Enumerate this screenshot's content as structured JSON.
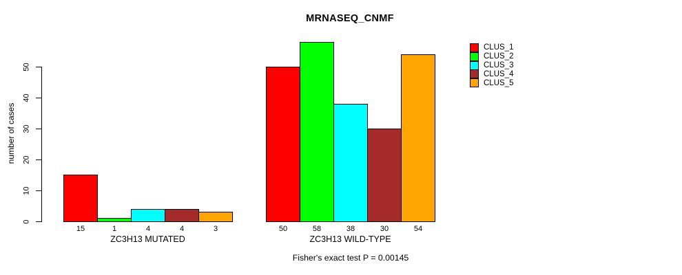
{
  "chart_data": {
    "type": "bar",
    "title": "MRNASEQ_CNMF",
    "ylabel": "number of cases",
    "xlabel": "",
    "annotation": "Fisher's exact test P = 0.00145",
    "categories": [
      "ZC3H13 MUTATED",
      "ZC3H13 WILD-TYPE"
    ],
    "series": [
      {
        "name": "CLUS_1",
        "color": "#ff0000",
        "values": [
          15,
          50
        ]
      },
      {
        "name": "CLUS_2",
        "color": "#00ff00",
        "values": [
          1,
          58
        ]
      },
      {
        "name": "CLUS_3",
        "color": "#00ffff",
        "values": [
          4,
          38
        ]
      },
      {
        "name": "CLUS_4",
        "color": "#a52a2a",
        "values": [
          4,
          30
        ]
      },
      {
        "name": "CLUS_5",
        "color": "#ffa500",
        "values": [
          3,
          54
        ]
      }
    ],
    "yticks": [
      0,
      10,
      20,
      30,
      40,
      50
    ],
    "ylim": [
      0,
      58
    ],
    "legend_position": "right",
    "bar_value_labels": true,
    "grid": false,
    "bar_edge_color": "#000000",
    "background_color": "#ffffff"
  }
}
